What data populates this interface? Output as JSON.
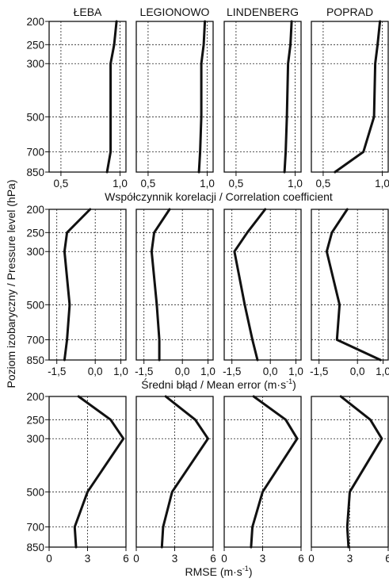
{
  "stations": [
    "ŁEBA",
    "LEGIONOWO",
    "LINDENBERG",
    "POPRAD"
  ],
  "y_axis": {
    "label": "Poziom izobaryczny / Pressure level (hPa)",
    "levels": [
      200,
      250,
      300,
      500,
      700,
      850
    ],
    "scale": "log",
    "reversed": true
  },
  "chart_data": [
    {
      "type": "line",
      "panel_row": 1,
      "xlabel": "Współczynnik korelacji / Correlation coefficient",
      "xlim": [
        0.4,
        1.05
      ],
      "xticks": [
        0.5,
        1.0
      ],
      "xtick_labels": [
        "0,5",
        "1,0"
      ],
      "grid": true,
      "series": [
        {
          "name": "ŁEBA",
          "levels": [
            200,
            250,
            300,
            500,
            700,
            850
          ],
          "values": [
            0.97,
            0.95,
            0.92,
            0.92,
            0.92,
            0.89
          ]
        },
        {
          "name": "LEGIONOWO",
          "levels": [
            200,
            250,
            300,
            500,
            700,
            850
          ],
          "values": [
            0.98,
            0.97,
            0.95,
            0.95,
            0.94,
            0.93
          ]
        },
        {
          "name": "LINDENBERG",
          "levels": [
            200,
            250,
            300,
            500,
            700,
            850
          ],
          "values": [
            0.97,
            0.96,
            0.94,
            0.93,
            0.92,
            0.91
          ]
        },
        {
          "name": "POPRAD",
          "levels": [
            200,
            250,
            300,
            500,
            700,
            850
          ],
          "values": [
            0.98,
            0.96,
            0.94,
            0.93,
            0.84,
            0.6
          ]
        }
      ]
    },
    {
      "type": "line",
      "panel_row": 2,
      "xlabel": "Średni błąd / Mean error (m·s",
      "xlabel_sup": "-1",
      "xlabel_end": ")",
      "xlim": [
        -1.8,
        1.2
      ],
      "xticks": [
        -1.5,
        0.0,
        1.0
      ],
      "xtick_labels": [
        "-1,5",
        "0,0",
        "1,0"
      ],
      "grid": true,
      "series": [
        {
          "name": "ŁEBA",
          "levels": [
            200,
            250,
            300,
            500,
            700,
            850
          ],
          "values": [
            -0.2,
            -1.1,
            -1.2,
            -1.0,
            -1.1,
            -1.2
          ]
        },
        {
          "name": "LEGIONOWO",
          "levels": [
            200,
            250,
            300,
            500,
            700,
            850
          ],
          "values": [
            -0.5,
            -1.1,
            -1.2,
            -1.0,
            -0.9,
            -0.9
          ]
        },
        {
          "name": "LINDENBERG",
          "levels": [
            200,
            250,
            300,
            500,
            700,
            850
          ],
          "values": [
            -0.2,
            -0.9,
            -1.4,
            -1.0,
            -0.7,
            -0.5
          ]
        },
        {
          "name": "POPRAD",
          "levels": [
            200,
            250,
            300,
            500,
            700,
            850
          ],
          "values": [
            -0.4,
            -1.0,
            -1.2,
            -0.7,
            -0.8,
            0.9
          ]
        }
      ]
    },
    {
      "type": "line",
      "panel_row": 3,
      "xlabel": "RMSE (m·s",
      "xlabel_sup": "-1",
      "xlabel_end": ")",
      "xlim": [
        0,
        6
      ],
      "xticks": [
        0,
        3,
        6
      ],
      "xtick_labels": [
        "0",
        "3",
        "6"
      ],
      "grid": true,
      "series": [
        {
          "name": "ŁEBA",
          "levels": [
            200,
            250,
            300,
            500,
            700,
            850
          ],
          "values": [
            2.3,
            4.8,
            5.8,
            3.0,
            2.0,
            2.1
          ]
        },
        {
          "name": "LEGIONOWO",
          "levels": [
            200,
            250,
            300,
            500,
            700,
            850
          ],
          "values": [
            2.3,
            4.6,
            5.6,
            2.8,
            2.1,
            2.0
          ]
        },
        {
          "name": "LINDENBERG",
          "levels": [
            200,
            250,
            300,
            500,
            700,
            850
          ],
          "values": [
            2.3,
            4.8,
            5.7,
            3.0,
            2.2,
            2.1
          ]
        },
        {
          "name": "POPRAD",
          "levels": [
            200,
            250,
            300,
            500,
            700,
            850
          ],
          "values": [
            2.3,
            4.6,
            5.5,
            3.0,
            2.8,
            2.9
          ]
        }
      ]
    }
  ]
}
